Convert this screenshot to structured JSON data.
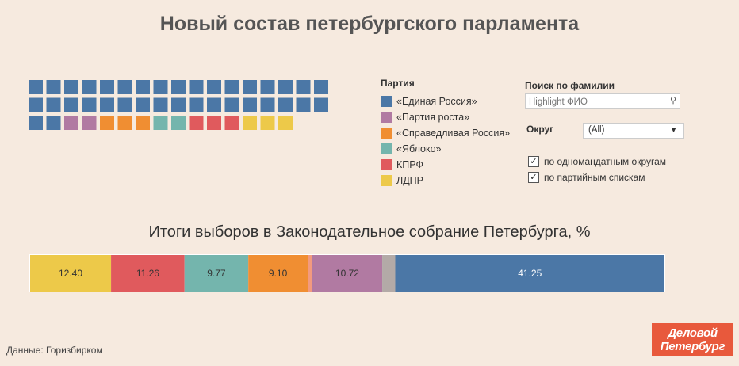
{
  "title": "Новый состав петербургского парламента",
  "legend": {
    "title": "Партия",
    "items": [
      {
        "label": "«Единая Россия»",
        "color": "#4b77a6"
      },
      {
        "label": "«Партия роста»",
        "color": "#b17aa2"
      },
      {
        "label": "«Справедливая Россия»",
        "color": "#f08e32"
      },
      {
        "label": "«Яблоко»",
        "color": "#74b5ad"
      },
      {
        "label": "КПРФ",
        "color": "#e05a5d"
      },
      {
        "label": "ЛДПР",
        "color": "#edc949"
      }
    ]
  },
  "filters": {
    "search_label": "Поиск по фамилии",
    "search_placeholder": "Highlight ФИО",
    "okrug_label": "Округ",
    "okrug_value": "(All)",
    "check1": "по одномандатным округам",
    "check2": "по партийным спискам"
  },
  "source": "Данные: Горизбирком",
  "logo_text": "Деловой Петербург",
  "chart_data": [
    {
      "type": "waffle",
      "title": "",
      "seats": [
        {
          "party": "«Единая Россия»",
          "count": 36,
          "color": "#4b77a6"
        },
        {
          "party": "«Партия роста»",
          "count": 2,
          "color": "#b17aa2"
        },
        {
          "party": "«Справедливая Россия»",
          "count": 3,
          "color": "#f08e32"
        },
        {
          "party": "«Яблоко»",
          "count": 2,
          "color": "#74b5ad"
        },
        {
          "party": "КПРФ",
          "count": 3,
          "color": "#e05a5d"
        },
        {
          "party": "ЛДПР",
          "count": 3,
          "color": "#edc949"
        }
      ]
    },
    {
      "type": "bar",
      "stacked": true,
      "orientation": "horizontal",
      "title": "Итоги выборов в Законодательное собрание Петербурга, %",
      "series": [
        {
          "name": "ЛДПР",
          "value": 12.4,
          "label": "12.40",
          "color": "#edc949"
        },
        {
          "name": "КПРФ",
          "value": 11.26,
          "label": "11.26",
          "color": "#e05a5d"
        },
        {
          "name": "«Яблоко»",
          "value": 9.77,
          "label": "9.77",
          "color": "#74b5ad"
        },
        {
          "name": "«Справедливая Россия»",
          "value": 9.1,
          "label": "9.10",
          "color": "#f08e32"
        },
        {
          "name": "",
          "value": 0.7,
          "label": "",
          "color": "#f29a7f"
        },
        {
          "name": "«Партия роста»",
          "value": 10.72,
          "label": "10.72",
          "color": "#b17aa2"
        },
        {
          "name": "",
          "value": 2.0,
          "label": "",
          "color": "#b3aaa7"
        },
        {
          "name": "«Единая Россия»",
          "value": 41.25,
          "label": "41.25",
          "color": "#4b77a6"
        }
      ],
      "xlim": [
        0,
        100
      ]
    }
  ]
}
